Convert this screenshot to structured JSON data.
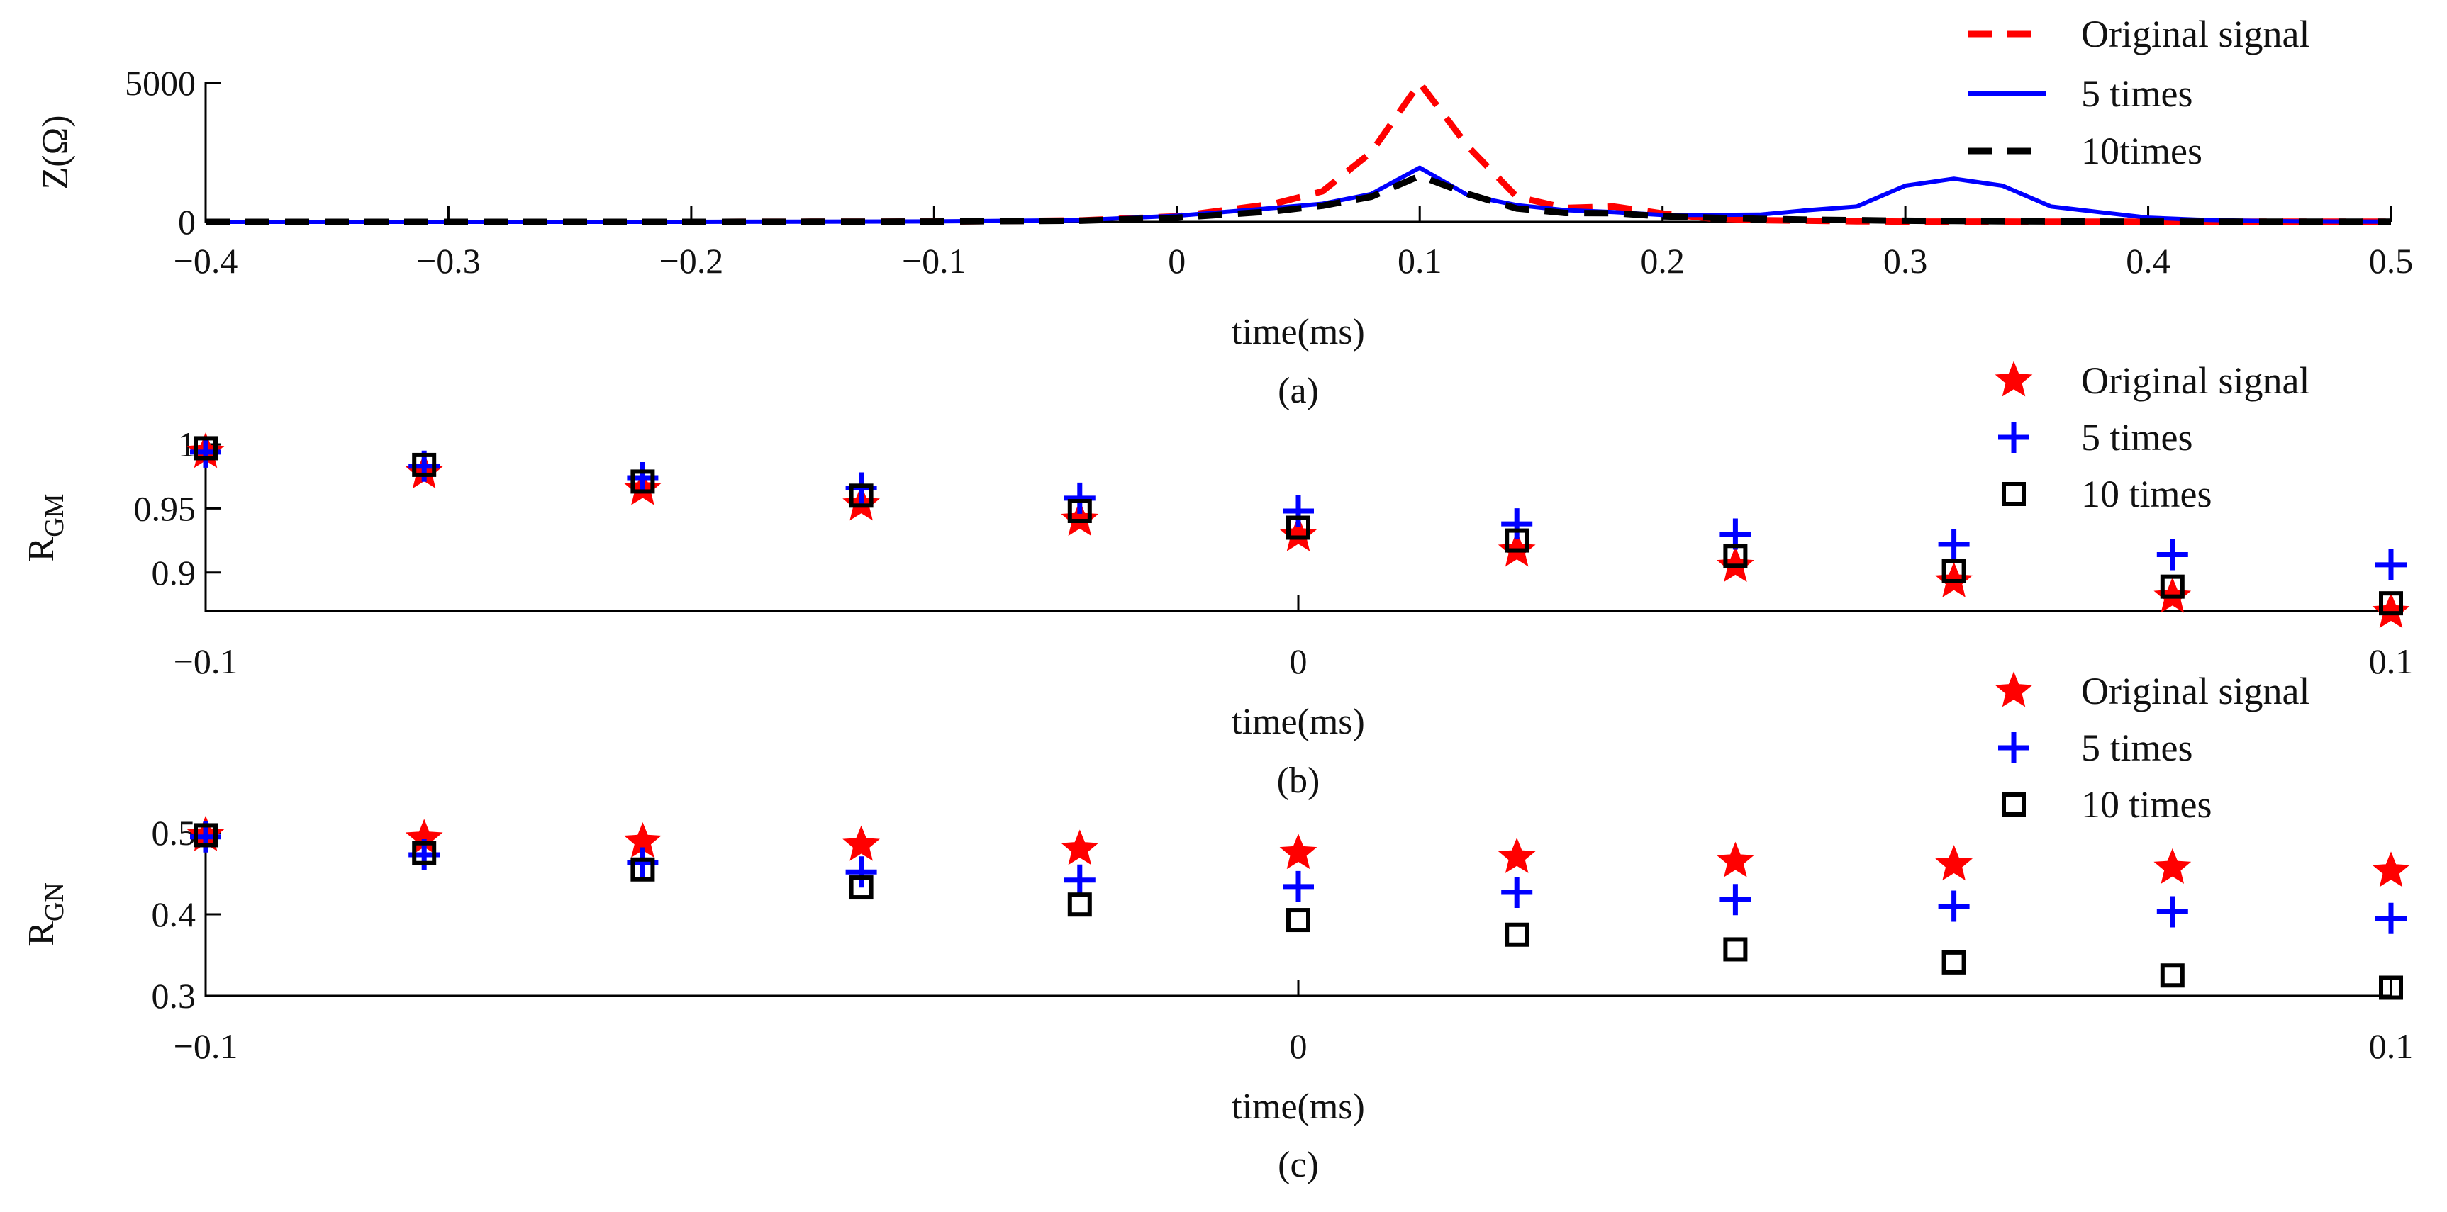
{
  "chart_data": [
    {
      "id": "a",
      "type": "line",
      "caption": "(a)",
      "xlabel": "time(ms)",
      "ylabel": "Z(Ω)",
      "xlim": [
        -0.4,
        0.5
      ],
      "ylim": [
        0,
        5000
      ],
      "xticks": [
        -0.4,
        -0.3,
        -0.2,
        -0.1,
        0,
        0.1,
        0.2,
        0.3,
        0.4,
        0.5
      ],
      "xtick_labels": [
        "−0.4",
        "−0.3",
        "−0.2",
        "−0.1",
        "0",
        "0.1",
        "0.2",
        "0.3",
        "0.4",
        "0.5"
      ],
      "yticks": [
        0,
        5000
      ],
      "ytick_labels": [
        "0",
        "5000"
      ],
      "legend_position": "top-right",
      "x": [
        -0.4,
        -0.3,
        -0.2,
        -0.1,
        -0.04,
        0,
        0.04,
        0.06,
        0.08,
        0.1,
        0.12,
        0.14,
        0.16,
        0.18,
        0.2,
        0.22,
        0.24,
        0.26,
        0.28,
        0.3,
        0.32,
        0.34,
        0.36,
        0.38,
        0.4,
        0.42,
        0.44,
        0.46,
        0.48,
        0.5
      ],
      "series": [
        {
          "name": "Original signal",
          "style": "dashed",
          "color": "#ff0000",
          "values": [
            0,
            0,
            0,
            10,
            50,
            200,
            650,
            1100,
            2500,
            5000,
            2700,
            900,
            500,
            550,
            300,
            120,
            60,
            40,
            20,
            10,
            10,
            10,
            5,
            5,
            5,
            5,
            5,
            5,
            5,
            5
          ]
        },
        {
          "name": "5 times",
          "style": "solid",
          "color": "#0000ff",
          "values": [
            0,
            0,
            0,
            15,
            60,
            220,
            500,
            650,
            1000,
            1950,
            950,
            600,
            420,
            350,
            250,
            250,
            260,
            420,
            550,
            1300,
            1550,
            1300,
            550,
            350,
            150,
            80,
            40,
            20,
            10,
            5
          ]
        },
        {
          "name": "10times",
          "style": "dashed",
          "color": "#000000",
          "values": [
            0,
            0,
            0,
            10,
            40,
            150,
            380,
            580,
            900,
            1650,
            1000,
            480,
            320,
            310,
            200,
            150,
            110,
            80,
            60,
            40,
            30,
            20,
            15,
            10,
            10,
            5,
            5,
            5,
            5,
            5
          ]
        }
      ]
    },
    {
      "id": "b",
      "type": "scatter",
      "caption": "(b)",
      "xlabel": "time(ms)",
      "ylabel": "R",
      "ylabel_sub": "GM",
      "xlim": [
        -0.1,
        0.1
      ],
      "ylim": [
        0.87,
        1.0
      ],
      "xticks": [
        -0.1,
        0,
        0.1
      ],
      "xtick_labels": [
        "−0.1",
        "0",
        "0.1"
      ],
      "yticks": [
        0.9,
        0.95,
        1.0
      ],
      "ytick_labels": [
        "0.9",
        "0.95",
        "1"
      ],
      "legend_position": "top-right",
      "x": [
        -0.1,
        -0.08,
        -0.06,
        -0.04,
        -0.02,
        0,
        0.02,
        0.04,
        0.06,
        0.08,
        0.1
      ],
      "series": [
        {
          "name": "Original signal",
          "marker": "star",
          "color": "#ff0000",
          "values": [
            0.994,
            0.978,
            0.965,
            0.953,
            0.941,
            0.929,
            0.917,
            0.905,
            0.893,
            0.881,
            0.869
          ]
        },
        {
          "name": "5 times",
          "marker": "plus",
          "color": "#0000ff",
          "values": [
            0.994,
            0.983,
            0.974,
            0.966,
            0.958,
            0.948,
            0.938,
            0.93,
            0.922,
            0.914,
            0.906
          ]
        },
        {
          "name": "10 times",
          "marker": "square",
          "color": "#000000",
          "values": [
            0.997,
            0.984,
            0.971,
            0.96,
            0.948,
            0.935,
            0.925,
            0.913,
            0.901,
            0.889,
            0.876
          ]
        }
      ]
    },
    {
      "id": "c",
      "type": "scatter",
      "caption": "(c)",
      "xlabel": "time(ms)",
      "ylabel": "R",
      "ylabel_sub": "GN",
      "xlim": [
        -0.1,
        0.1
      ],
      "ylim": [
        0.3,
        0.5
      ],
      "xticks": [
        -0.1,
        0,
        0.1
      ],
      "xtick_labels": [
        "−0.1",
        "0",
        "0.1"
      ],
      "yticks": [
        0.3,
        0.4,
        0.5
      ],
      "ytick_labels": [
        "0.3",
        "0.4",
        "0.5"
      ],
      "legend_position": "top-right",
      "x": [
        -0.1,
        -0.08,
        -0.06,
        -0.04,
        -0.02,
        0,
        0.02,
        0.04,
        0.06,
        0.08,
        0.1
      ],
      "series": [
        {
          "name": "Original signal",
          "marker": "star",
          "color": "#ff0000",
          "values": [
            0.497,
            0.493,
            0.489,
            0.485,
            0.48,
            0.475,
            0.47,
            0.465,
            0.461,
            0.457,
            0.453
          ]
        },
        {
          "name": "5 times",
          "marker": "plus",
          "color": "#0000ff",
          "values": [
            0.495,
            0.473,
            0.463,
            0.452,
            0.442,
            0.434,
            0.427,
            0.418,
            0.41,
            0.403,
            0.395
          ]
        },
        {
          "name": "10 times",
          "marker": "square",
          "color": "#000000",
          "values": [
            0.497,
            0.475,
            0.455,
            0.433,
            0.412,
            0.393,
            0.375,
            0.357,
            0.341,
            0.325,
            0.31
          ]
        }
      ]
    }
  ]
}
